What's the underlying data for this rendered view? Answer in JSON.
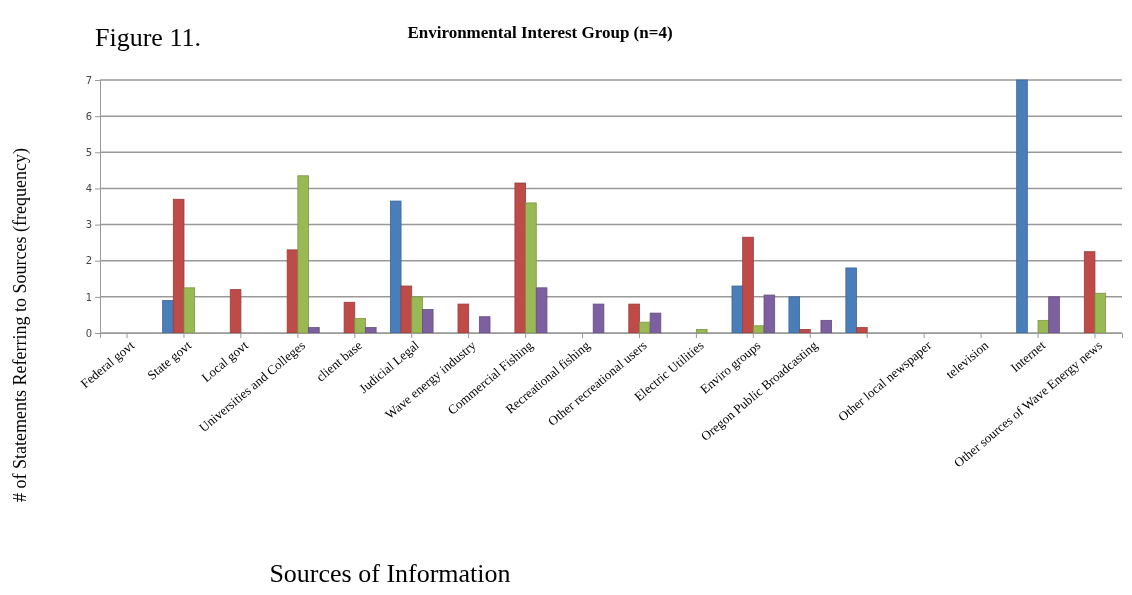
{
  "chart_data": {
    "type": "bar",
    "title": "Environmental Interest Group (n=4)",
    "xlabel": "Sources of Information",
    "ylabel": "# of Statements Referring to Sources (frequency)",
    "annotations": [
      "Figure 11."
    ],
    "categories": [
      "Federal govt",
      "State govt",
      "Local govt",
      "Universities and Colleges",
      "client base",
      "Judicial Legal",
      "Wave energy industry",
      "Commercial Fishing",
      "Recreational fishing",
      "Other recreational users",
      "Electric Utilities",
      "Enviro groups",
      "Oregon Public Broadcasting",
      null,
      "Other local newspaper",
      "television",
      "Internet",
      "Other sources of Wave Energy news"
    ],
    "series": [
      {
        "color": "#4a7ebb",
        "values": [
          0,
          0.9,
          0,
          0,
          0,
          3.65,
          0,
          0,
          0,
          0,
          0,
          1.3,
          1.0,
          1.8,
          0,
          0,
          7.0,
          0
        ]
      },
      {
        "color": "#be4b48",
        "values": [
          0,
          3.7,
          1.2,
          2.3,
          0.85,
          1.3,
          0.8,
          4.15,
          0,
          0.8,
          0,
          2.65,
          0.1,
          0.15,
          0,
          0,
          0,
          2.25
        ]
      },
      {
        "color": "#98b954",
        "values": [
          0,
          1.25,
          0,
          4.35,
          0.4,
          1.0,
          0,
          3.6,
          0,
          0.3,
          0.1,
          0.2,
          0,
          0,
          0,
          0,
          0.35,
          1.1
        ]
      },
      {
        "color": "#7d60a0",
        "values": [
          0,
          0,
          0,
          0.15,
          0.15,
          0.65,
          0.45,
          1.25,
          0.8,
          0.55,
          0,
          1.05,
          0.35,
          0,
          0,
          0,
          1.0,
          0
        ]
      }
    ],
    "ylim": [
      0,
      7
    ],
    "yticks": [
      0,
      1,
      2,
      3,
      4,
      5,
      6,
      7
    ],
    "grid": "y"
  }
}
